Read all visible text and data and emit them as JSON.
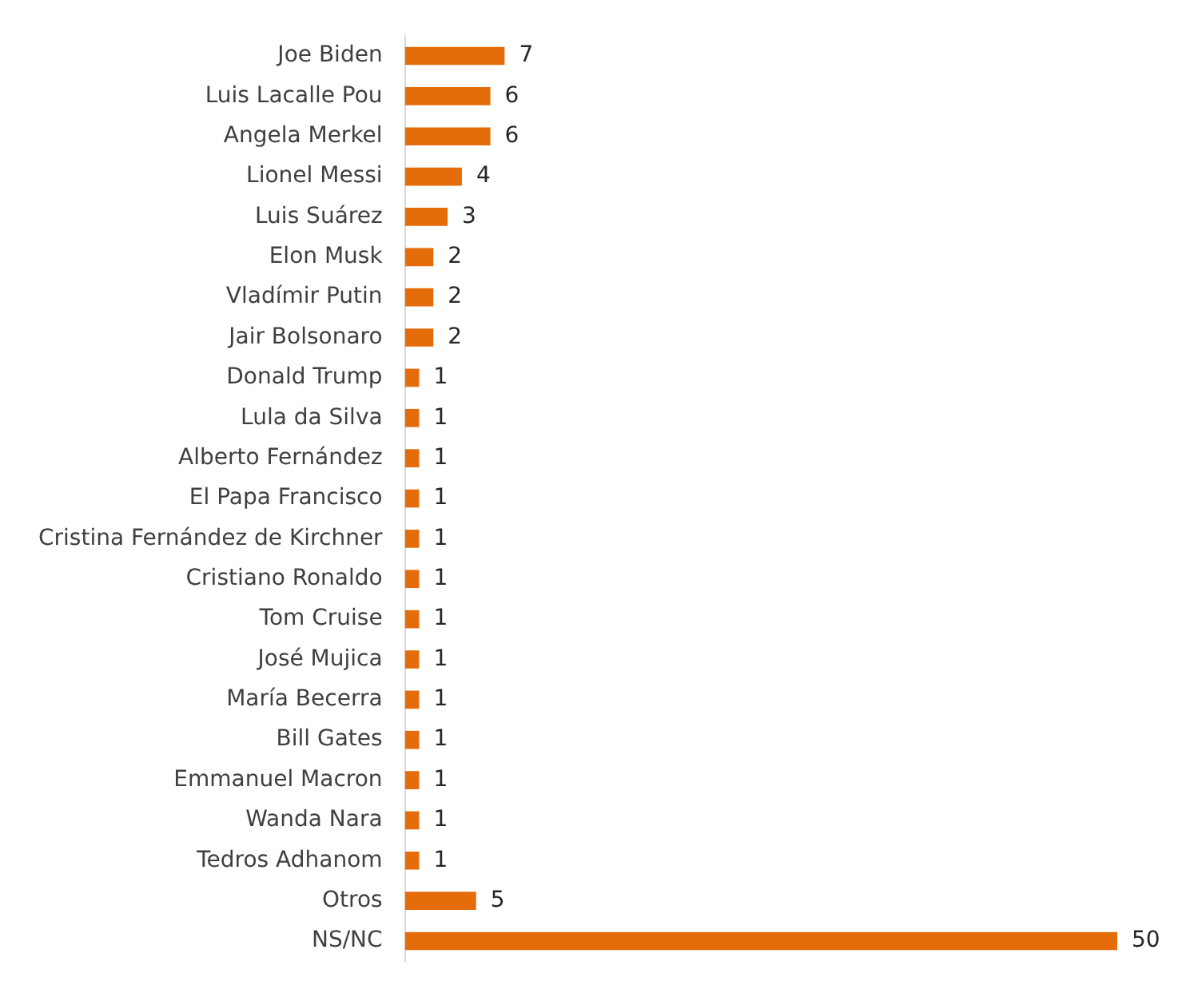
{
  "chart_data": {
    "type": "bar",
    "orientation": "horizontal",
    "categories": [
      "Joe Biden",
      "Luis Lacalle Pou",
      "Angela Merkel",
      "Lionel Messi",
      "Luis Suárez",
      "Elon Musk",
      "Vladímir Putin",
      "Jair Bolsonaro",
      "Donald Trump",
      "Lula da Silva",
      "Alberto Fernández",
      "El Papa Francisco",
      "Cristina Fernández de Kirchner",
      "Cristiano Ronaldo",
      "Tom Cruise",
      "José Mujica",
      "María Becerra",
      "Bill Gates",
      "Emmanuel Macron",
      "Wanda Nara",
      "Tedros Adhanom",
      "Otros",
      "NS/NC"
    ],
    "values": [
      7,
      6,
      6,
      4,
      3,
      2,
      2,
      2,
      1,
      1,
      1,
      1,
      1,
      1,
      1,
      1,
      1,
      1,
      1,
      1,
      1,
      5,
      50
    ],
    "color": "#e46c0a",
    "data_labels": true,
    "legend": false
  }
}
